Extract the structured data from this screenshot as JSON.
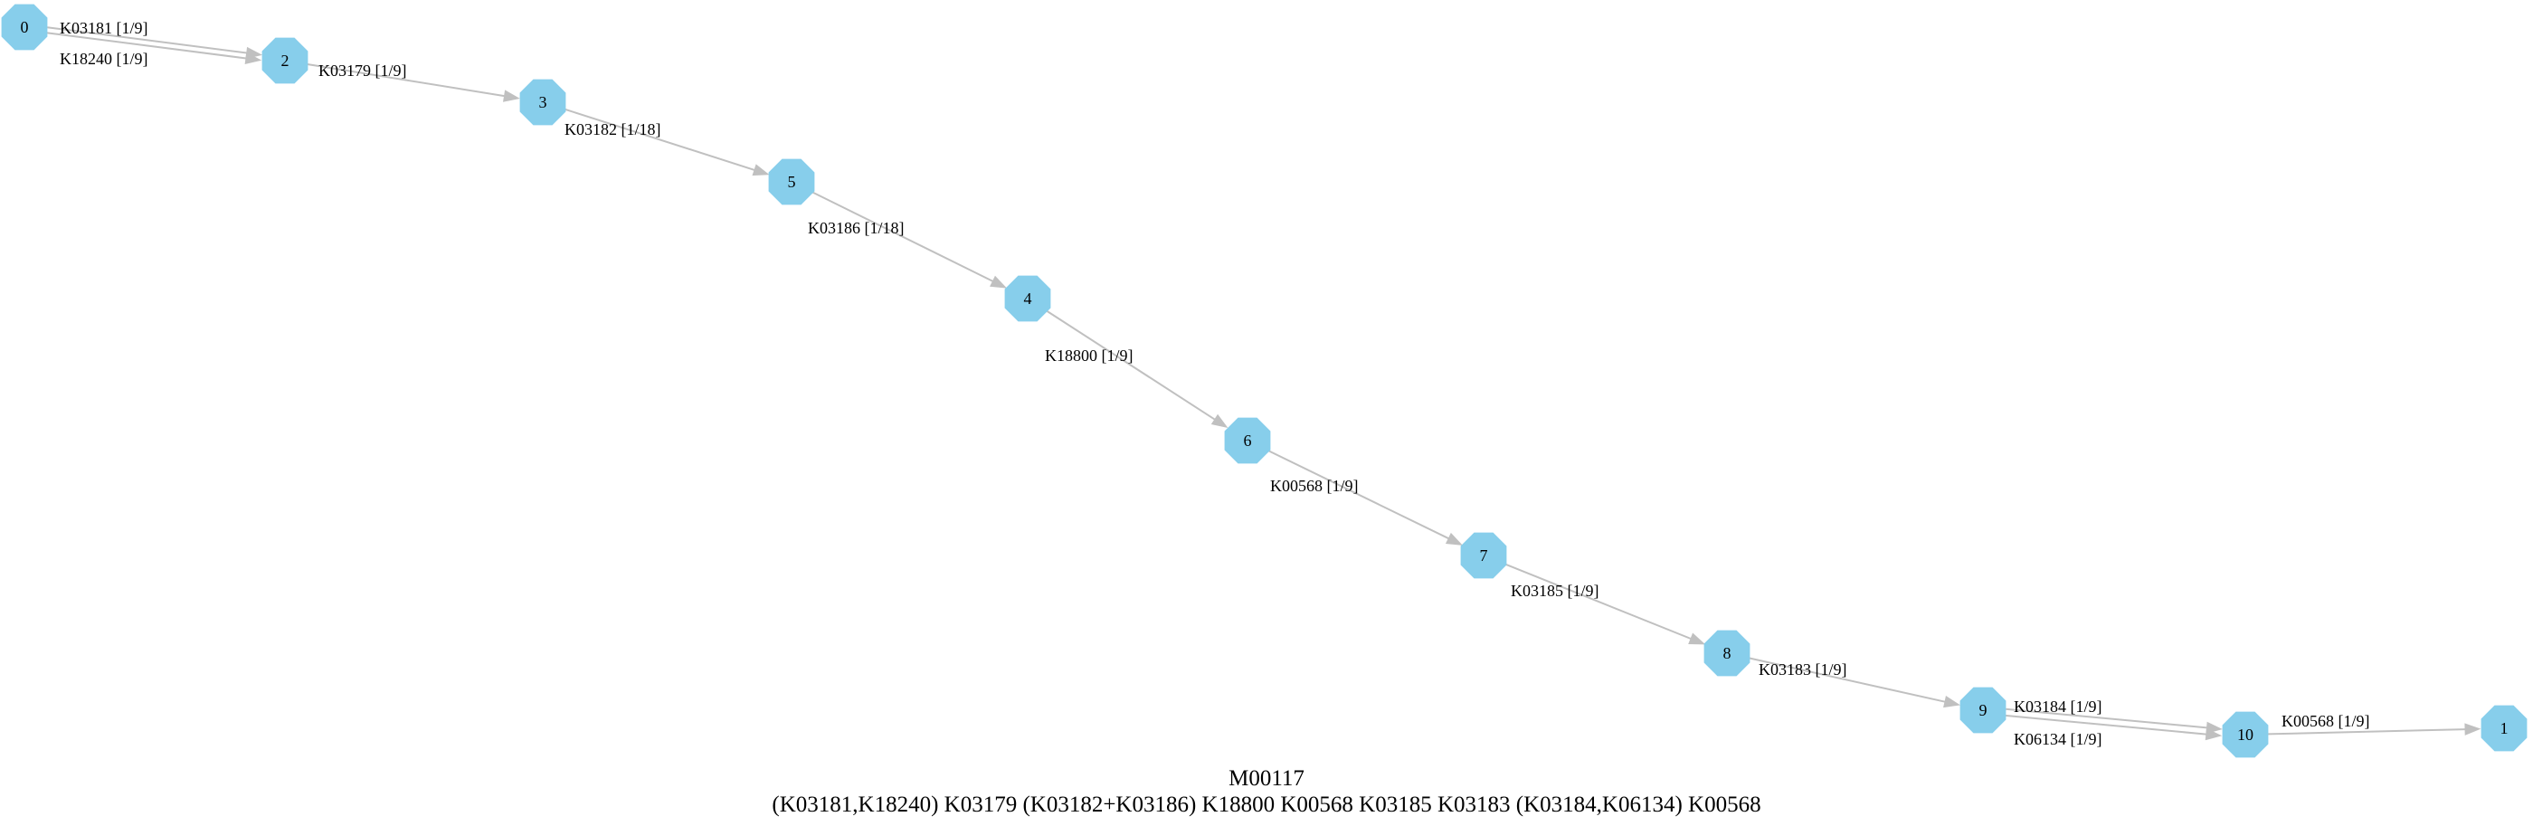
{
  "title": "M00117",
  "subtitle": "(K03181,K18240) K03179 (K03182+K03186) K18800 K00568 K03185 K03183 (K03184,K06134) K00568",
  "colors": {
    "node_fill": "#87ceeb",
    "edge": "#c0c0c0",
    "text": "#000000",
    "background": "#ffffff"
  },
  "nodes": [
    {
      "id": "0",
      "label": "0"
    },
    {
      "id": "2",
      "label": "2"
    },
    {
      "id": "3",
      "label": "3"
    },
    {
      "id": "5",
      "label": "5"
    },
    {
      "id": "4",
      "label": "4"
    },
    {
      "id": "6",
      "label": "6"
    },
    {
      "id": "7",
      "label": "7"
    },
    {
      "id": "8",
      "label": "8"
    },
    {
      "id": "9",
      "label": "9"
    },
    {
      "id": "10",
      "label": "10"
    },
    {
      "id": "1",
      "label": "1"
    }
  ],
  "edges": [
    {
      "from": "0",
      "to": "2",
      "label": "K03181 [1/9]"
    },
    {
      "from": "0",
      "to": "2",
      "label": "K18240 [1/9]"
    },
    {
      "from": "2",
      "to": "3",
      "label": "K03179 [1/9]"
    },
    {
      "from": "3",
      "to": "5",
      "label": "K03182 [1/18]"
    },
    {
      "from": "5",
      "to": "4",
      "label": "K03186 [1/18]"
    },
    {
      "from": "4",
      "to": "6",
      "label": "K18800 [1/9]"
    },
    {
      "from": "6",
      "to": "7",
      "label": "K00568 [1/9]"
    },
    {
      "from": "7",
      "to": "8",
      "label": "K03185 [1/9]"
    },
    {
      "from": "8",
      "to": "9",
      "label": "K03183 [1/9]"
    },
    {
      "from": "9",
      "to": "10",
      "label": "K03184 [1/9]"
    },
    {
      "from": "9",
      "to": "10",
      "label": "K06134 [1/9]"
    },
    {
      "from": "10",
      "to": "1",
      "label": "K00568 [1/9]"
    }
  ]
}
